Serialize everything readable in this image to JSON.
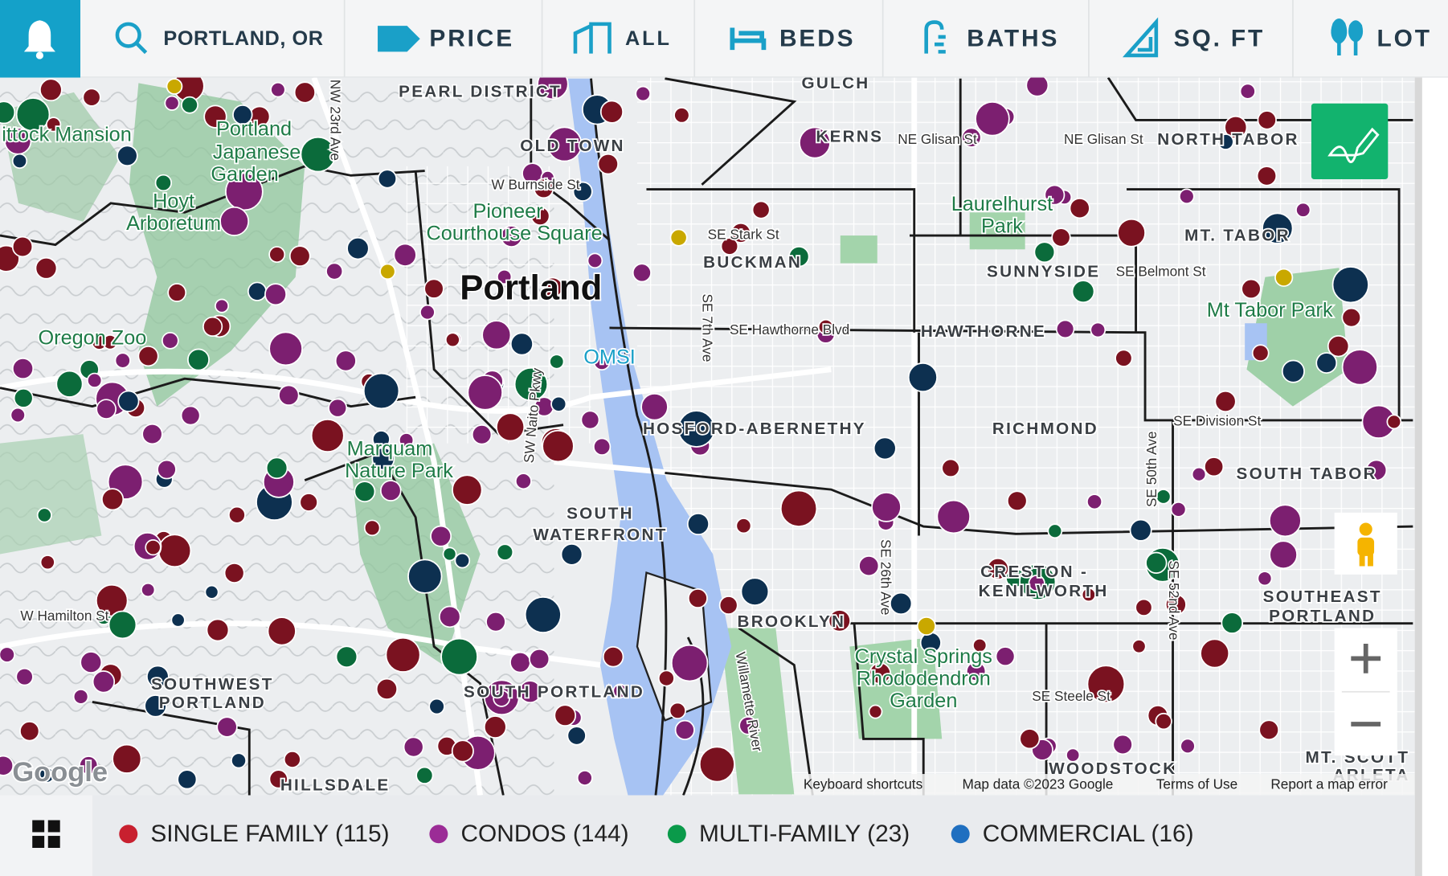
{
  "filter_bar": {
    "location": "PORTLAND, OR",
    "filters": [
      "PRICE",
      "ALL",
      "BEDS",
      "BATHS",
      "SQ. FT",
      "LOT"
    ]
  },
  "map": {
    "labels": [
      "ittock Mansion",
      "Portland",
      "Japanese",
      "Garden",
      "Hoyt",
      "Arboretum",
      "Oregon Zoo",
      "PEARL DISTRICT",
      "OLD TOWN",
      "W Burnside St",
      "Pioneer",
      "Courthouse Square",
      "Portland",
      "NW 23rd Ave",
      "OMSI",
      "GULCH",
      "KERNS",
      "NE Glisan St",
      "NE Glisan St",
      "NORTH TABOR",
      "Laurelhurst",
      "Park",
      "SE Stark St",
      "BUCKMAN",
      "SUNNYSIDE",
      "SE Belmont St",
      "MT. TABOR",
      "Mt Tabor Park",
      "SE Hawthorne Blvd",
      "HAWTHORNE",
      "SE 7th Ave",
      "HOSFORD-ABERNETHY",
      "RICHMOND",
      "SE Division St",
      "SOUTH TABOR",
      "Marquam",
      "Nature Park",
      "SW Naito Pkwy",
      "SOUTH",
      "WATERFRONT",
      "SE 50th Ave",
      "CRESTON -",
      "KENILWORTH",
      "SOUTHEAST",
      "PORTLAND",
      "SE 26th Ave",
      "SE 52nd Ave",
      "BROOKLYN",
      "W Hamilton St",
      "Crystal Springs",
      "Rhododendron",
      "Garden",
      "SOUTHWEST",
      "PORTLAND",
      "SOUTH PORTLAND",
      "SE Steele St",
      "Willamette River",
      "HILLSDALE",
      "WOODSTOCK",
      "MT. SCOTT",
      "ARLETA"
    ],
    "attribution": {
      "logo": "Google",
      "shortcuts": "Keyboard shortcuts",
      "data": "Map data ©2023 Google",
      "terms": "Terms of Use",
      "report": "Report a map error"
    }
  },
  "legend": [
    {
      "label": "SINGLE FAMILY (115)",
      "color": "#c8202f"
    },
    {
      "label": "CONDOS (144)",
      "color": "#9b2c96"
    },
    {
      "label": "MULTI-FAMILY (23)",
      "color": "#0a9a4a"
    },
    {
      "label": "COMMERCIAL (16)",
      "color": "#1f6fc0"
    }
  ]
}
